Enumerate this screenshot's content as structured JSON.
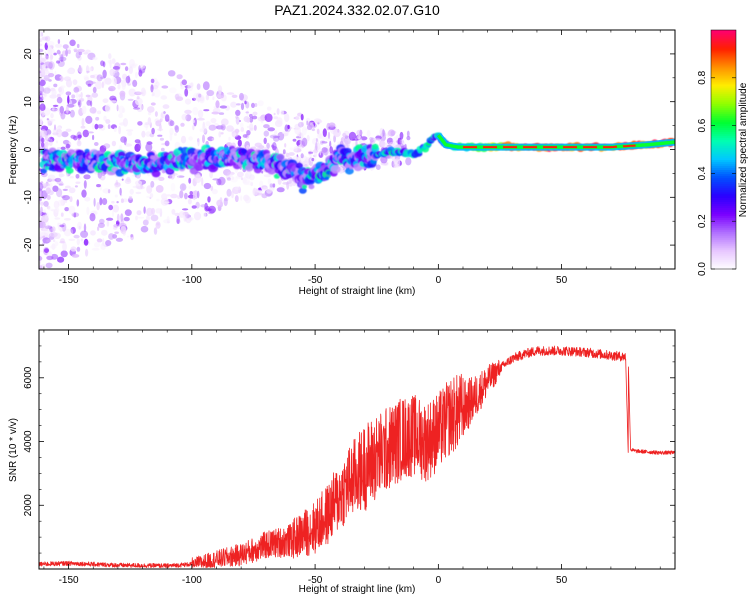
{
  "title": "PAZ1.2024.332.02.07.G10",
  "chart_data": [
    {
      "type": "heatmap",
      "xlabel": "Height of straight line (km)",
      "ylabel": "Frequency (Hz)",
      "xlim": [
        -162,
        96
      ],
      "ylim": [
        -25,
        25
      ],
      "xticks": [
        -150,
        -100,
        -50,
        0,
        50
      ],
      "yticks": [
        -20,
        -10,
        0,
        10,
        20
      ],
      "grid": false,
      "colorbar": {
        "label": "Normalized spectral amplitude",
        "range": [
          0,
          1
        ],
        "ticks": [
          "0.0",
          "0.2",
          "0.4",
          "0.6",
          "0.8"
        ],
        "colors": [
          "#ffffff",
          "#e8c8ff",
          "#b070ff",
          "#7a00ff",
          "#2a00ff",
          "#0050ff",
          "#00c8ff",
          "#00ffb0",
          "#00ff30",
          "#90ff00",
          "#ffee00",
          "#ff9000",
          "#ff2000",
          "#ff0070"
        ]
      },
      "ridge": {
        "x": [
          -155,
          -140,
          -125,
          -110,
          -95,
          -80,
          -70,
          -60,
          -55,
          -45,
          -40,
          -35,
          -30,
          -25,
          -20,
          -15,
          -10,
          -5,
          -2,
          0,
          3,
          8,
          15,
          30,
          50,
          70,
          85,
          95
        ],
        "y": [
          -2,
          -2.5,
          -3,
          -2.5,
          -2,
          -1.5,
          -2.5,
          -4,
          -6,
          -4.5,
          -1.5,
          -2.5,
          -1.5,
          -1,
          -0.5,
          -0.5,
          -1,
          0.5,
          2.5,
          3,
          1,
          0.5,
          0.5,
          0.5,
          0.5,
          0.5,
          1,
          1.5
        ]
      }
    },
    {
      "type": "line",
      "xlabel": "Height of straight line (km)",
      "ylabel": "SNR (10 * v/v)",
      "xlim": [
        -162,
        96
      ],
      "ylim": [
        0,
        7500
      ],
      "xticks": [
        -150,
        -100,
        -50,
        0,
        50
      ],
      "yticks": [
        2000,
        4000,
        6000
      ],
      "grid": false,
      "color": "#ee2222",
      "x": [
        -162,
        -150,
        -130,
        -110,
        -100,
        -90,
        -80,
        -70,
        -60,
        -50,
        -45,
        -40,
        -35,
        -30,
        -25,
        -20,
        -15,
        -10,
        -5,
        0,
        5,
        10,
        15,
        20,
        25,
        30,
        35,
        40,
        50,
        60,
        70,
        77,
        78,
        80,
        90,
        96
      ],
      "y": [
        150,
        180,
        120,
        100,
        150,
        300,
        450,
        750,
        900,
        1300,
        1700,
        2300,
        2800,
        3200,
        3500,
        3800,
        4100,
        4200,
        4000,
        4300,
        4800,
        5000,
        5400,
        5900,
        6300,
        6600,
        6750,
        6850,
        6850,
        6800,
        6700,
        6650,
        3750,
        3700,
        3650,
        3650
      ]
    }
  ]
}
